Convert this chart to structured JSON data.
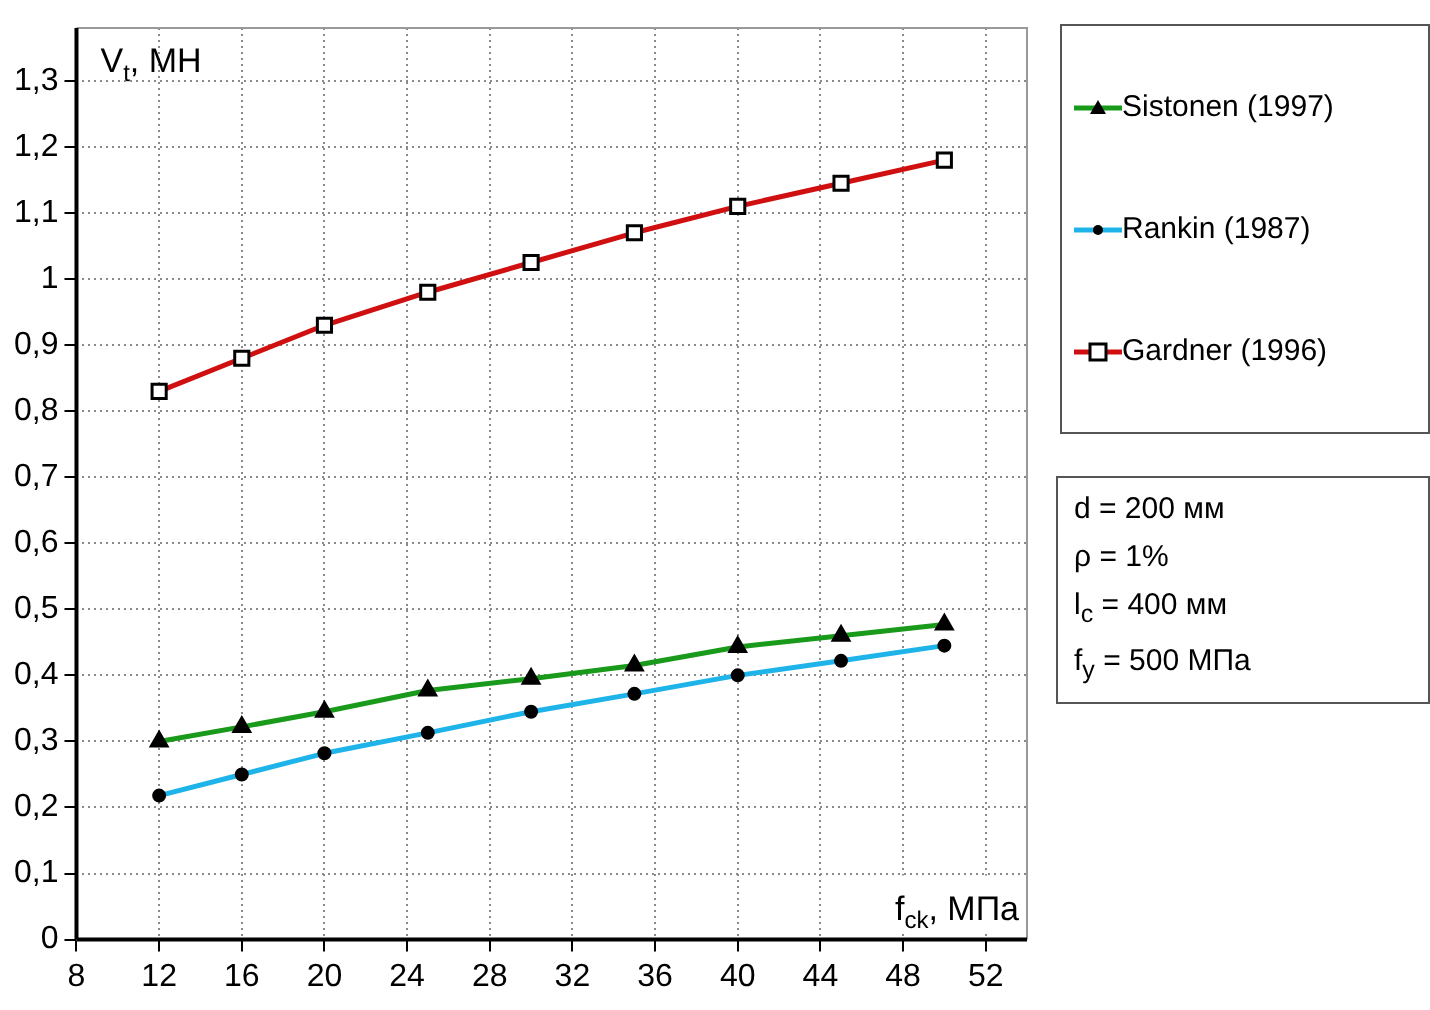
{
  "chart_data": {
    "type": "line",
    "xlabel": "f$_{ck}$, МПа",
    "ylabel": "V$_{t}$, МН",
    "x": [
      12,
      16,
      20,
      25,
      30,
      35,
      40,
      45,
      50
    ],
    "series": [
      {
        "name": "Sistonen (1997)",
        "color": "#1a9a1a",
        "marker": "triangle",
        "values": [
          0.3,
          0.322,
          0.345,
          0.377,
          0.395,
          0.415,
          0.443,
          0.46,
          0.477
        ]
      },
      {
        "name": "Rankin (1987)",
        "color": "#1eb4ea",
        "marker": "circle",
        "values": [
          0.218,
          0.25,
          0.282,
          0.313,
          0.345,
          0.372,
          0.4,
          0.422,
          0.445
        ]
      },
      {
        "name": "Gardner (1996)",
        "color": "#d01010",
        "marker": "square",
        "values": [
          0.83,
          0.88,
          0.93,
          0.98,
          1.025,
          1.07,
          1.11,
          1.145,
          1.18
        ]
      }
    ],
    "xlim": [
      8,
      54
    ],
    "xticks": [
      8,
      12,
      16,
      20,
      24,
      28,
      32,
      36,
      40,
      44,
      48,
      52
    ],
    "ylim": [
      0,
      1.38
    ],
    "yticks": [
      0,
      {
        "value": 0.1,
        "label": "0,1"
      },
      {
        "value": 0.2,
        "label": "0,2"
      },
      {
        "value": 0.3,
        "label": "0,3"
      },
      {
        "value": 0.4,
        "label": "0,4"
      },
      {
        "value": 0.5,
        "label": "0,5"
      },
      {
        "value": 0.6,
        "label": "0,6"
      },
      {
        "value": 0.7,
        "label": "0,7"
      },
      {
        "value": 0.8,
        "label": "0,8"
      },
      {
        "value": 0.9,
        "label": "0,9"
      },
      1,
      {
        "value": 1.1,
        "label": "1,1"
      },
      {
        "value": 1.2,
        "label": "1,2"
      },
      {
        "value": 1.3,
        "label": "1,3"
      }
    ],
    "grid": true,
    "legend": "right",
    "line_style": "solid",
    "annotations": [
      "d = 200 мм",
      "ρ = 1%",
      "l$_{c}$ = 400 мм",
      "f$_{y}$ = 500 МПа"
    ]
  }
}
